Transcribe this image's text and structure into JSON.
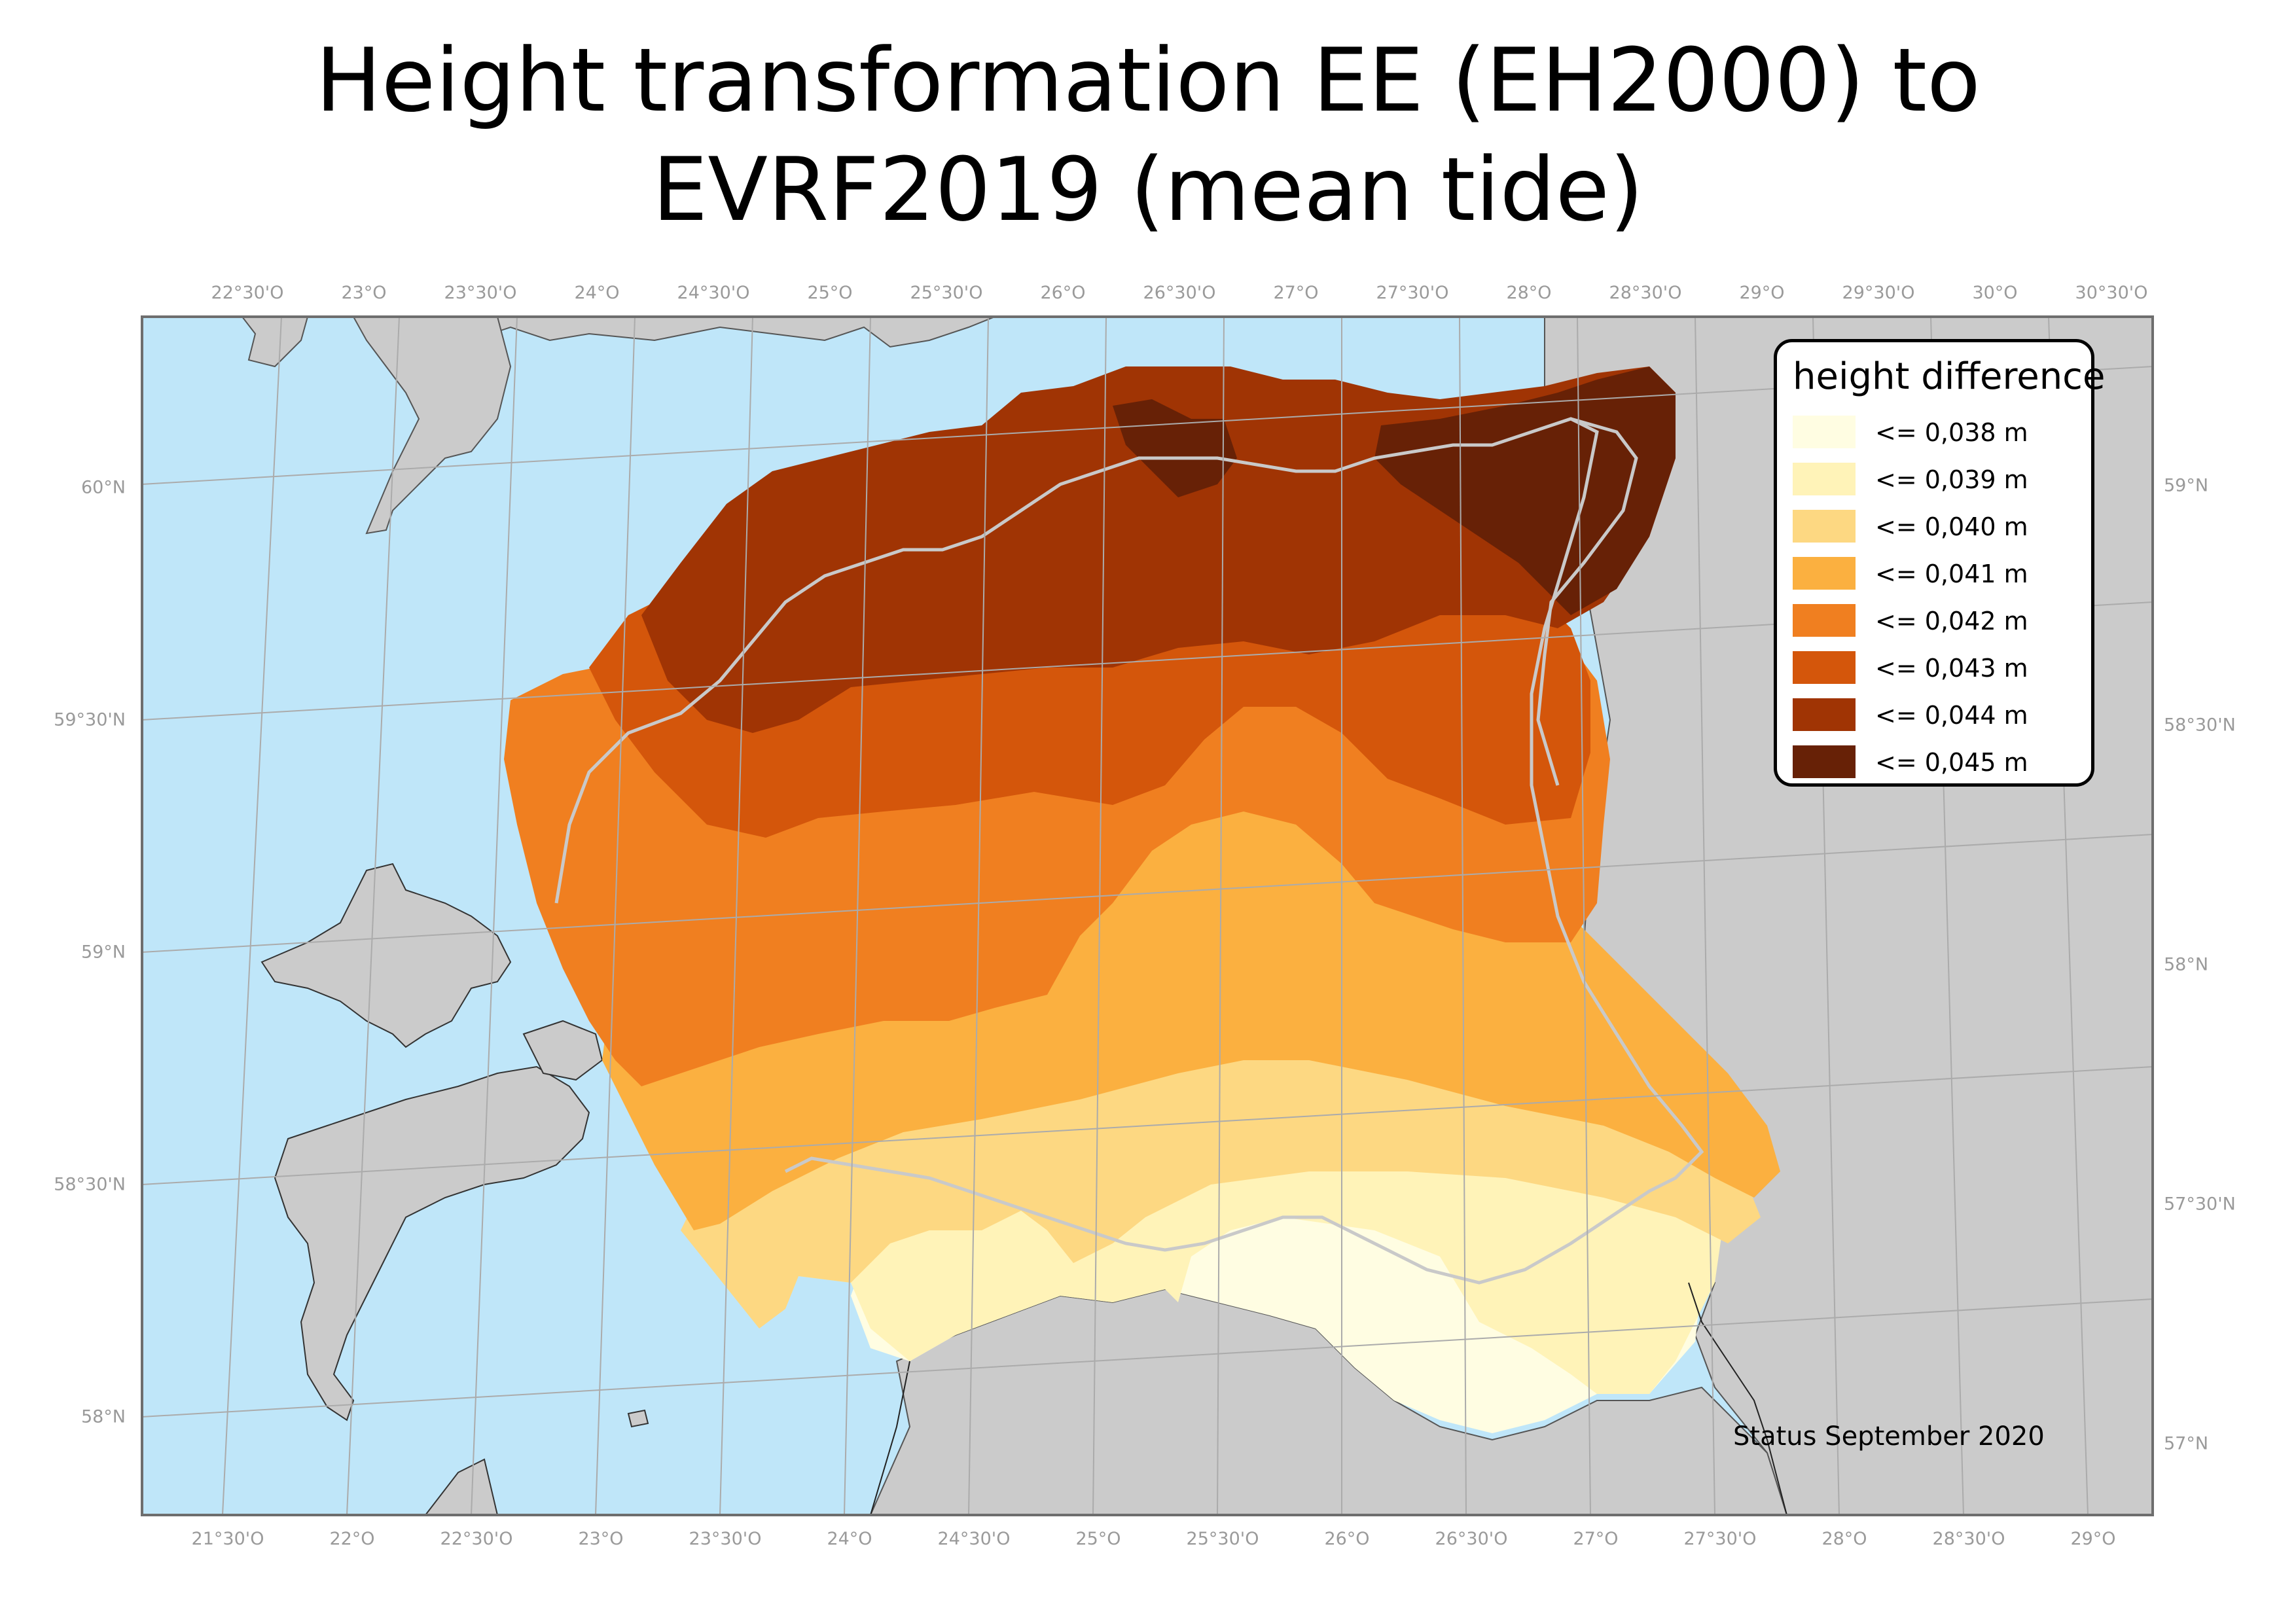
{
  "title_line1": "Height transformation EE (EH2000) to",
  "title_line2": "EVRF2019 (mean tide)",
  "legend": {
    "title": "height difference",
    "items": [
      {
        "label": "<= 0,038 m",
        "color": "#fffde2"
      },
      {
        "label": "<= 0,039 m",
        "color": "#fff3b8"
      },
      {
        "label": "<= 0,040 m",
        "color": "#fdd882"
      },
      {
        "label": "<= 0,041 m",
        "color": "#fbb040"
      },
      {
        "label": "<= 0,042 m",
        "color": "#f07f20"
      },
      {
        "label": "<= 0,043 m",
        "color": "#d4560b"
      },
      {
        "label": "<= 0,044 m",
        "color": "#a03404"
      },
      {
        "label": "<= 0,045 m",
        "color": "#672106"
      }
    ]
  },
  "graticule": {
    "top": [
      "22°30'O",
      "23°O",
      "23°30'O",
      "24°O",
      "24°30'O",
      "25°O",
      "25°30'O",
      "26°O",
      "26°30'O",
      "27°O",
      "27°30'O",
      "28°O",
      "28°30'O",
      "29°O",
      "29°30'O",
      "30°O",
      "30°30'O"
    ],
    "bottom": [
      "21°30'O",
      "22°O",
      "22°30'O",
      "23°O",
      "23°30'O",
      "24°O",
      "24°30'O",
      "25°O",
      "25°30'O",
      "26°O",
      "26°30'O",
      "27°O",
      "27°30'O",
      "28°O",
      "28°30'O",
      "29°O"
    ],
    "left": [
      "60°N",
      "59°30'N",
      "59°N",
      "58°30'N",
      "58°N"
    ],
    "right": [
      "59°N",
      "58°30'N",
      "58°N",
      "57°30'N",
      "57°N"
    ]
  },
  "status": "Status September 2020",
  "colors": {
    "sea": "#bfe6f9",
    "land": "#cbcbcb",
    "frame": "#6e6e6e",
    "grid": "#ababab"
  }
}
